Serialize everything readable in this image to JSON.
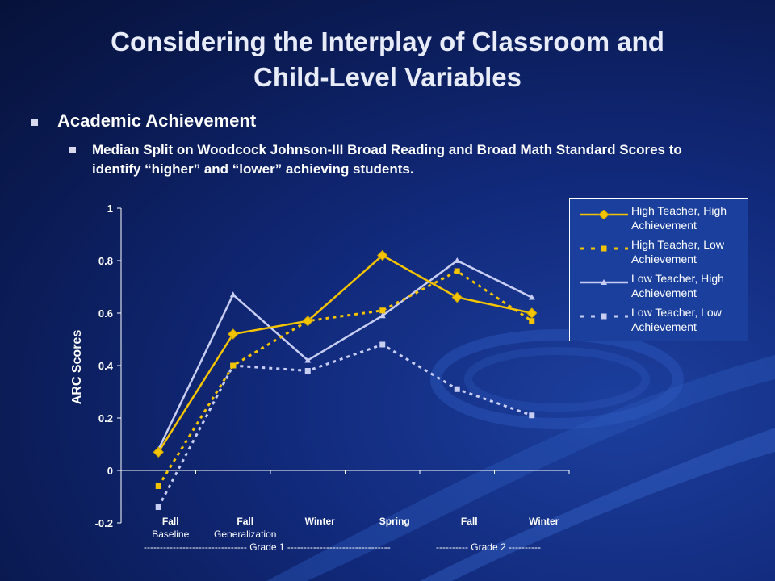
{
  "slide": {
    "title_line1": "Considering the Interplay of Classroom and",
    "title_line2": "Child-Level Variables",
    "bullet1": "Academic Achievement",
    "bullet2": "Median Split on Woodcock Johnson-III Broad Reading and Broad Math Standard Scores to identify “higher” and “lower” achieving students."
  },
  "colors": {
    "gold": "#f5c400",
    "lavender": "#c8cdf2",
    "axis": "#ffffff"
  },
  "chart_data": {
    "type": "line",
    "ylabel": "ARC Scores",
    "ylim": [
      -0.2,
      1
    ],
    "yticks": [
      "-0.2",
      "0",
      "0.2",
      "0.4",
      "0.6",
      "0.8",
      "1"
    ],
    "categories": [
      {
        "main": "Fall",
        "sub": "Baseline"
      },
      {
        "main": "Fall",
        "sub": "Generalization"
      },
      {
        "main": "Winter",
        "sub": ""
      },
      {
        "main": "Spring",
        "sub": ""
      },
      {
        "main": "Fall",
        "sub": ""
      },
      {
        "main": "Winter",
        "sub": ""
      }
    ],
    "grade_labels": [
      "-------------------------------- Grade 1 --------------------------------",
      "---------- Grade 2 ----------"
    ],
    "legend_position": "top-right",
    "series": [
      {
        "name": "High Teacher, High Achievement",
        "color": "#f5c400",
        "dash": false,
        "marker": "diamond",
        "values": [
          0.07,
          0.52,
          0.57,
          0.82,
          0.66,
          0.6
        ]
      },
      {
        "name": "High Teacher, Low Achievement",
        "color": "#f5c400",
        "dash": true,
        "marker": "square",
        "values": [
          -0.06,
          0.4,
          0.57,
          0.61,
          0.76,
          0.57
        ]
      },
      {
        "name": "Low Teacher, High Achievement",
        "color": "#c8cdf2",
        "dash": false,
        "marker": "triangle",
        "values": [
          0.08,
          0.67,
          0.42,
          0.59,
          0.8,
          0.66
        ]
      },
      {
        "name": "Low Teacher, Low Achievement",
        "color": "#c8cdf2",
        "dash": true,
        "marker": "square",
        "values": [
          -0.14,
          0.4,
          0.38,
          0.48,
          0.31,
          0.21
        ]
      }
    ]
  }
}
